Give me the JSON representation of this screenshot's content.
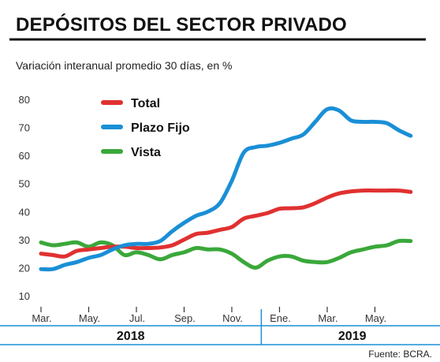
{
  "header": {
    "title": "DEPÓSITOS DEL SECTOR PRIVADO",
    "subtitle": "Variación interanual promedio 30 días, en %"
  },
  "footer": {
    "source": "Fuente: BCRA."
  },
  "colors": {
    "total": "#e03131",
    "plazo_fijo": "#1a8fd6",
    "vista": "#3aa83a",
    "title_rule": "#111111",
    "axis_line": "#1a8fd6"
  },
  "chart_data": {
    "type": "line",
    "title": "DEPÓSITOS DEL SECTOR PRIVADO",
    "subtitle": "Variación interanual promedio 30 días, en %",
    "ylim": [
      10,
      80
    ],
    "yticks": [
      10,
      20,
      30,
      40,
      50,
      60,
      70,
      80
    ],
    "xlim": [
      0,
      16.2
    ],
    "month_ticks": [
      {
        "label": "Mar.",
        "x": 0
      },
      {
        "label": "May.",
        "x": 2
      },
      {
        "label": "Jul.",
        "x": 4
      },
      {
        "label": "Sep.",
        "x": 6
      },
      {
        "label": "Nov.",
        "x": 8
      },
      {
        "label": "Ene.",
        "x": 10
      },
      {
        "label": "Mar.",
        "x": 12
      },
      {
        "label": "May.",
        "x": 14
      }
    ],
    "year_groups": [
      {
        "label": "2018",
        "from": 0,
        "to": 9.7
      },
      {
        "label": "2019",
        "from": 9.7,
        "to": 16.2
      }
    ],
    "legend": [
      "Total",
      "Plazo Fijo",
      "Vista"
    ],
    "grid": false,
    "legend_position": "top-left",
    "series": [
      {
        "name": "Total",
        "color": "#e03131",
        "x": [
          0,
          0.5,
          1,
          1.5,
          2,
          2.5,
          3,
          3.5,
          4,
          4.5,
          5,
          5.5,
          6,
          6.5,
          7,
          7.5,
          8,
          8.5,
          9,
          9.5,
          10,
          10.5,
          11,
          11.5,
          12,
          12.5,
          13,
          13.5,
          14,
          14.5,
          15,
          15.5
        ],
        "y": [
          25,
          24.5,
          24,
          26,
          26.5,
          27,
          27.5,
          27.5,
          27,
          27,
          27.2,
          28,
          30,
          32,
          32.5,
          33.5,
          34.5,
          37.5,
          38.5,
          39.5,
          41,
          41.2,
          41.5,
          43,
          45,
          46.5,
          47.2,
          47.5,
          47.5,
          47.5,
          47.5,
          47
        ]
      },
      {
        "name": "Plazo Fijo",
        "color": "#1a8fd6",
        "x": [
          0,
          0.5,
          1,
          1.5,
          2,
          2.5,
          3,
          3.5,
          4,
          4.5,
          5,
          5.5,
          6,
          6.5,
          7,
          7.5,
          8,
          8.5,
          9,
          9.5,
          10,
          10.5,
          11,
          11.5,
          12,
          12.5,
          13,
          13.5,
          14,
          14.5,
          15,
          15.5
        ],
        "y": [
          19.5,
          19.5,
          21,
          22,
          23.5,
          24.5,
          26.5,
          28,
          28.5,
          28.5,
          29.5,
          33,
          36,
          38.5,
          40,
          43,
          51,
          61,
          63,
          63.5,
          64.5,
          66,
          67.5,
          72,
          76.5,
          76,
          72.5,
          72,
          72,
          71.5,
          69,
          67
        ]
      },
      {
        "name": "Vista",
        "color": "#3aa83a",
        "x": [
          0,
          0.5,
          1,
          1.5,
          2,
          2.5,
          3,
          3.5,
          4,
          4.5,
          5,
          5.5,
          6,
          6.5,
          7,
          7.5,
          8,
          8.5,
          9,
          9.5,
          10,
          10.5,
          11,
          11.5,
          12,
          12.5,
          13,
          13.5,
          14,
          14.5,
          15,
          15.5
        ],
        "y": [
          29,
          28,
          28.5,
          29,
          27.5,
          29,
          28,
          24.5,
          25.5,
          24.5,
          23,
          24.5,
          25.5,
          27,
          26.5,
          26.5,
          25,
          22,
          20,
          22.5,
          24,
          24,
          22.5,
          22,
          22,
          23.5,
          25.5,
          26.5,
          27.5,
          28,
          29.5,
          29.5
        ]
      }
    ]
  }
}
